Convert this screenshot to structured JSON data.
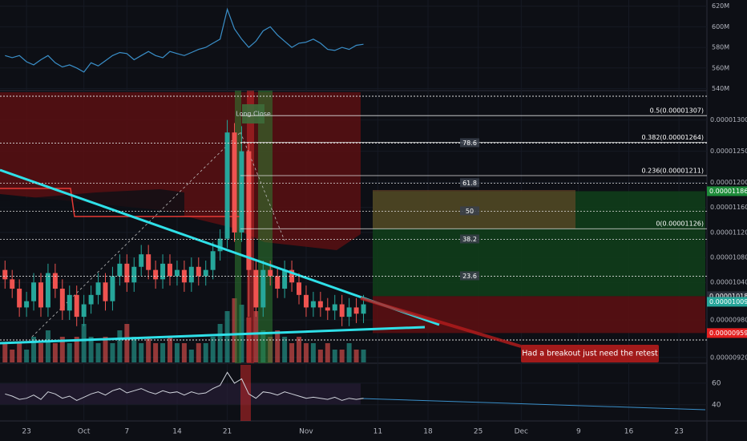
{
  "chart_data": {
    "type": "candlestick",
    "categories": [
      null,
      null,
      null,
      null,
      null,
      null,
      null,
      null,
      null,
      null,
      null,
      null,
      null,
      null,
      null,
      null,
      null,
      null,
      null,
      null,
      null,
      null,
      null,
      null,
      null,
      null,
      null,
      null,
      null,
      null,
      null,
      null,
      null,
      null,
      null,
      null,
      null,
      null,
      null,
      null,
      null,
      null,
      null,
      null,
      null,
      null,
      null,
      null,
      null,
      null,
      null
    ],
    "xlim": [
      -0.7,
      97.9
    ],
    "xticks": [
      {
        "value": 3,
        "label": "23"
      },
      {
        "value": 11,
        "label": "Oct"
      },
      {
        "value": 17,
        "label": "7"
      },
      {
        "value": 24,
        "label": "14"
      },
      {
        "value": 31,
        "label": "21"
      },
      {
        "value": 42,
        "label": "Nov"
      },
      {
        "value": 52,
        "label": "11"
      },
      {
        "value": 59,
        "label": "18"
      },
      {
        "value": 66,
        "label": "25"
      },
      {
        "value": 72,
        "label": "Dec"
      },
      {
        "value": 80,
        "label": "9"
      },
      {
        "value": 87,
        "label": "16"
      },
      {
        "value": 94,
        "label": "23"
      }
    ],
    "open": [
      1.06e-05,
      1.045e-05,
      1.03e-05,
      1e-05,
      1.01e-05,
      1.04e-05,
      1e-05,
      1.055e-05,
      1.03e-05,
      9.95e-06,
      1.02e-05,
      9.85e-06,
      1.005e-05,
      1.02e-05,
      1.04e-05,
      1.01e-05,
      1.05e-05,
      1.07e-05,
      1.04e-05,
      1.065e-05,
      1.085e-05,
      1.06e-05,
      1.045e-05,
      1.07e-05,
      1.05e-05,
      1.06e-05,
      1.04e-05,
      1.065e-05,
      1.05e-05,
      1.06e-05,
      1.09e-05,
      1.11e-05,
      1.28e-05,
      1.12e-05,
      1.25e-05,
      1.06e-05,
      1e-05,
      1.06e-05,
      1.05e-05,
      1.03e-05,
      1.06e-05,
      1.04e-05,
      1.02e-05,
      1e-05,
      1.01e-05,
      1e-05,
      9.95e-06,
      1.005e-05,
      9.85e-06,
      1e-05,
      9.9e-06
    ],
    "close": [
      1.045e-05,
      1.03e-05,
      1e-05,
      1.01e-05,
      1.04e-05,
      1e-05,
      1.055e-05,
      1.03e-05,
      9.95e-06,
      1.02e-05,
      9.85e-06,
      1.005e-05,
      1.02e-05,
      1.04e-05,
      1.01e-05,
      1.05e-05,
      1.07e-05,
      1.04e-05,
      1.065e-05,
      1.085e-05,
      1.06e-05,
      1.045e-05,
      1.07e-05,
      1.05e-05,
      1.06e-05,
      1.04e-05,
      1.065e-05,
      1.05e-05,
      1.06e-05,
      1.09e-05,
      1.11e-05,
      1.28e-05,
      1.12e-05,
      1.25e-05,
      1.06e-05,
      1e-05,
      1.06e-05,
      1.05e-05,
      1.03e-05,
      1.06e-05,
      1.04e-05,
      1.02e-05,
      1e-05,
      1.01e-05,
      1e-05,
      9.95e-06,
      1.005e-05,
      9.85e-06,
      1e-05,
      9.9e-06,
      1.005e-05
    ],
    "high": [
      1.075e-05,
      1.06e-05,
      1.045e-05,
      1.025e-05,
      1.055e-05,
      1.055e-05,
      1.07e-05,
      1.07e-05,
      1.045e-05,
      1.035e-05,
      1.035e-05,
      1.02e-05,
      1.035e-05,
      1.055e-05,
      1.055e-05,
      1.065e-05,
      1.085e-05,
      1.085e-05,
      1.08e-05,
      1.1e-05,
      1.1e-05,
      1.075e-05,
      1.085e-05,
      1.085e-05,
      1.075e-05,
      1.075e-05,
      1.08e-05,
      1.08e-05,
      1.075e-05,
      1.105e-05,
      1.125e-05,
      1.3e-05,
      1.295e-05,
      1.29e-05,
      1.265e-05,
      1.075e-05,
      1.075e-05,
      1.075e-05,
      1.065e-05,
      1.075e-05,
      1.075e-05,
      1.055e-05,
      1.035e-05,
      1.025e-05,
      1.025e-05,
      1.015e-05,
      1.02e-05,
      1.02e-05,
      1.015e-05,
      1.015e-05,
      1.02e-05
    ],
    "low": [
      1.03e-05,
      1.015e-05,
      9.85e-06,
      9.85e-06,
      9.95e-06,
      9.85e-06,
      9.85e-06,
      1.015e-05,
      9.8e-06,
      9.8e-06,
      9.7e-06,
      9.7e-06,
      9.9e-06,
      1.005e-05,
      9.95e-06,
      9.95e-06,
      1.035e-05,
      1.025e-05,
      1.025e-05,
      1.05e-05,
      1.045e-05,
      1.03e-05,
      1.03e-05,
      1.035e-05,
      1.035e-05,
      1.025e-05,
      1.025e-05,
      1.035e-05,
      1.035e-05,
      1.045e-05,
      1.075e-05,
      1.095e-05,
      1.105e-05,
      1.105e-05,
      9.85e-06,
      9.85e-06,
      9.85e-06,
      1.035e-05,
      1.015e-05,
      1.015e-05,
      1.025e-05,
      1.005e-05,
      9.85e-06,
      9.85e-06,
      9.85e-06,
      9.8e-06,
      9.8e-06,
      9.7e-06,
      9.7e-06,
      9.75e-06,
      9.75e-06
    ],
    "up_color": "#26a69a",
    "down_color": "#ef5350",
    "ylim": [
      9.12e-06,
      1.347e-05
    ],
    "yticks": [
      {
        "value": 1.3e-05,
        "label": "0.00001300"
      },
      {
        "value": 1.25e-05,
        "label": "0.00001250"
      },
      {
        "value": 1.2e-05,
        "label": "0.00001200"
      },
      {
        "value": 1.16e-05,
        "label": "0.00001160"
      },
      {
        "value": 1.12e-05,
        "label": "0.00001120"
      },
      {
        "value": 1.08e-05,
        "label": "0.00001080"
      },
      {
        "value": 1.04e-05,
        "label": "0.00001040"
      },
      {
        "value": 9.8e-06,
        "label": "0.00000980"
      },
      {
        "value": 9.2e-06,
        "label": "0.00000920"
      }
    ],
    "price_labels": [
      {
        "value": 1.186e-05,
        "label": "0.00001186",
        "color": "#1e8c3a"
      },
      {
        "value": 1.018e-05,
        "label": "0.00001018",
        "color": "#2a2e39"
      },
      {
        "value": 1.009e-05,
        "label": "0.00001009",
        "color": "#26a69a"
      },
      {
        "value": 9.59e-06,
        "label": "0.00000959",
        "color": "#e52020"
      }
    ],
    "fib_levels": [
      {
        "value": 1.307e-05,
        "label": "0.5(0.00001307)"
      },
      {
        "value": 1.264e-05,
        "label": "0.382(0.00001264)"
      },
      {
        "value": 1.211e-05,
        "label": "0.236(0.00001211)"
      },
      {
        "value": 1.126e-05,
        "label": "0(0.00001126)"
      }
    ],
    "fib_boxes": [
      {
        "value": 1.263e-05,
        "label": "78.6"
      },
      {
        "value": 1.199e-05,
        "label": "61.8"
      },
      {
        "value": 1.154e-05,
        "label": "50"
      },
      {
        "value": 1.109e-05,
        "label": "38.2"
      },
      {
        "value": 1.05e-05,
        "label": "23.6"
      }
    ],
    "volume": [
      3,
      2,
      3,
      2,
      4,
      3,
      5,
      3,
      4,
      3,
      4,
      6,
      4,
      3,
      4,
      3,
      5,
      6,
      4,
      3,
      4,
      3,
      3,
      4,
      3,
      3,
      2,
      3,
      3,
      4,
      6,
      8,
      10,
      9,
      7,
      8,
      5,
      4,
      5,
      4,
      3,
      4,
      3,
      3,
      2,
      3,
      2,
      2,
      3,
      2,
      2
    ],
    "market_cap": {
      "color": "#3a8fc9",
      "values": [
        572000000,
        570000000,
        572000000,
        566000000,
        563000000,
        568000000,
        572000000,
        565000000,
        561000000,
        563000000,
        560000000,
        556000000,
        565000000,
        562000000,
        567000000,
        572000000,
        575000000,
        574000000,
        568000000,
        572000000,
        576000000,
        572000000,
        570000000,
        576000000,
        574000000,
        572000000,
        575000000,
        578000000,
        580000000,
        584000000,
        588000000,
        617000000,
        598000000,
        588000000,
        580000000,
        586000000,
        596000000,
        600000000,
        592000000,
        586000000,
        580000000,
        584000000,
        585000000,
        588000000,
        584000000,
        578000000,
        577000000,
        580000000,
        578000000,
        582000000,
        583000000
      ],
      "ylim": [
        538000000,
        626000000
      ],
      "yticks": [
        {
          "value": 620000000,
          "label": "620M"
        },
        {
          "value": 600000000,
          "label": "600M"
        },
        {
          "value": 580000000,
          "label": "580M"
        },
        {
          "value": 560000000,
          "label": "560M"
        },
        {
          "value": 540000000,
          "label": "540M"
        }
      ]
    },
    "oscillator": {
      "color": "#d0d4dc",
      "values": [
        50,
        48,
        45,
        46,
        49,
        45,
        52,
        50,
        46,
        48,
        44,
        47,
        50,
        52,
        49,
        53,
        55,
        51,
        53,
        55,
        52,
        50,
        53,
        51,
        52,
        49,
        52,
        50,
        51,
        55,
        58,
        70,
        60,
        64,
        50,
        46,
        52,
        51,
        49,
        52,
        50,
        48,
        46,
        47,
        46,
        45,
        47,
        44,
        46,
        45,
        46
      ],
      "ylim": [
        25,
        77
      ],
      "yticks": [
        60,
        40
      ]
    },
    "annotations": [
      "Long Close",
      "Had a breakout just need the retest"
    ]
  }
}
